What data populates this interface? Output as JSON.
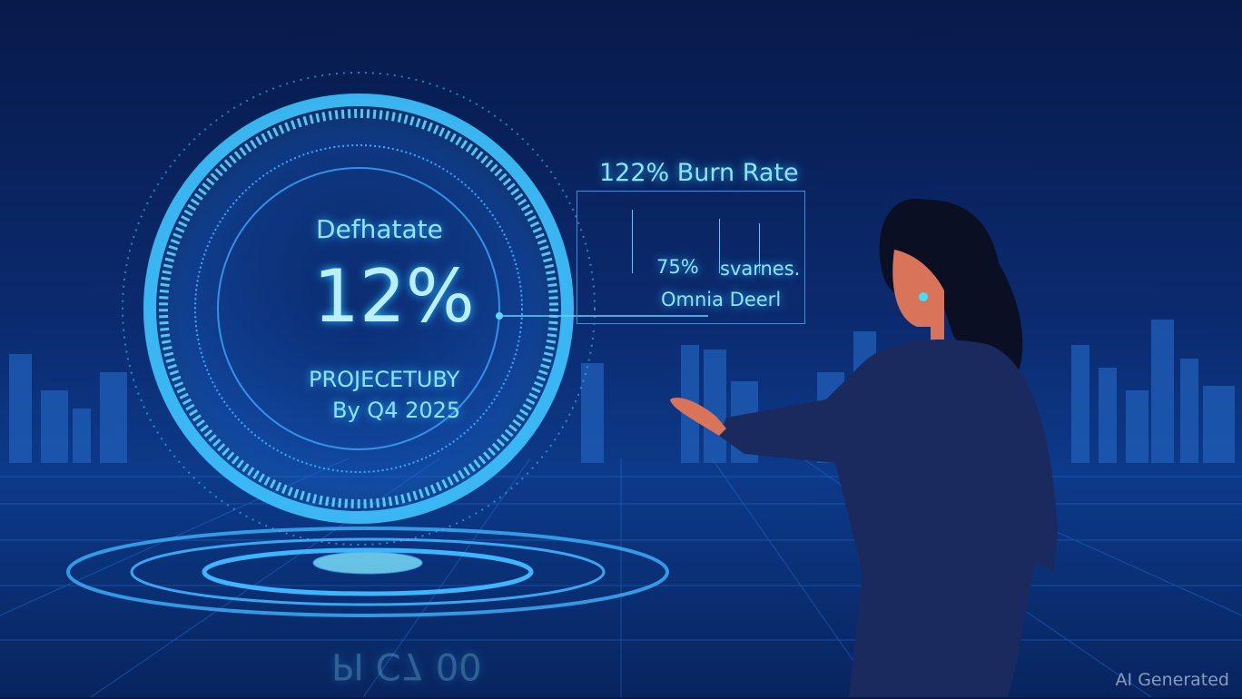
{
  "gauge": {
    "title": "Defhatate",
    "value": "12%",
    "subtitle": "PROJECETUBY",
    "date": "By Q4 2025",
    "reflection": "PI C7 00"
  },
  "panel": {
    "heading": "122% Burn Rate",
    "value": "75%",
    "value_label": "svarnes.",
    "caption": "Omnia Deerl"
  },
  "watermark": "AI Generated",
  "colors": {
    "accent": "#3fc4ff",
    "background": "#0b2a6e",
    "suit": "#1a2a5e",
    "skin": "#d9735a"
  }
}
